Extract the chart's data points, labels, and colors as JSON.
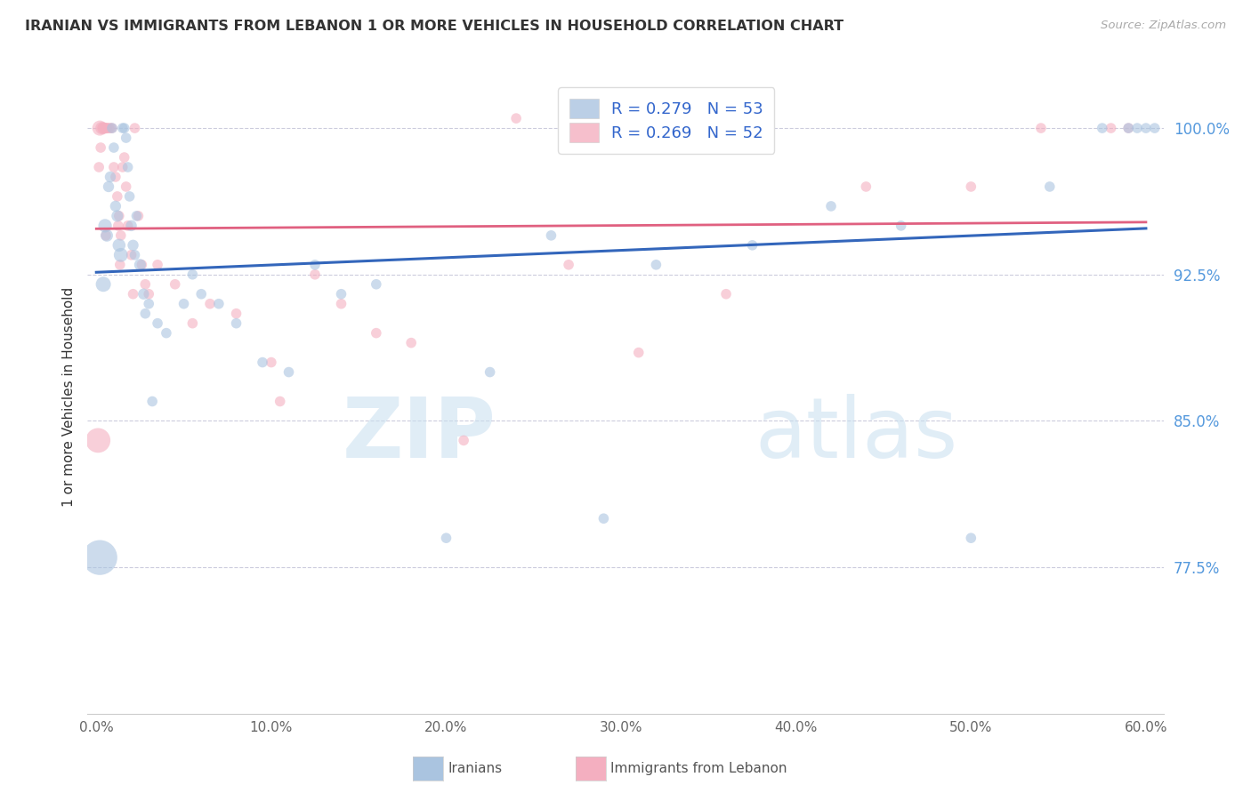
{
  "title": "IRANIAN VS IMMIGRANTS FROM LEBANON 1 OR MORE VEHICLES IN HOUSEHOLD CORRELATION CHART",
  "source": "Source: ZipAtlas.com",
  "ylabel": "1 or more Vehicles in Household",
  "xlabel_ticks": [
    "0.0%",
    "10.0%",
    "20.0%",
    "30.0%",
    "40.0%",
    "50.0%",
    "60.0%"
  ],
  "xlabel_vals": [
    0.0,
    10.0,
    20.0,
    30.0,
    40.0,
    50.0,
    60.0
  ],
  "ylim": [
    70.0,
    102.5
  ],
  "xlim": [
    -0.5,
    61.0
  ],
  "yticks": [
    77.5,
    85.0,
    92.5,
    100.0
  ],
  "ytick_labels": [
    "77.5%",
    "85.0%",
    "92.5%",
    "100.0%"
  ],
  "blue_color": "#aac4e0",
  "pink_color": "#f4afc0",
  "trendline_blue": "#3366bb",
  "trendline_pink": "#e06080",
  "legend_blue_text": "R = 0.279   N = 53",
  "legend_pink_text": "R = 0.269   N = 52",
  "watermark_zip": "ZIP",
  "watermark_atlas": "atlas",
  "iranians_x": [
    0.2,
    0.4,
    0.5,
    0.6,
    0.7,
    0.8,
    0.9,
    1.0,
    1.1,
    1.2,
    1.3,
    1.4,
    1.5,
    1.6,
    1.7,
    1.8,
    1.9,
    2.0,
    2.1,
    2.2,
    2.3,
    2.5,
    2.7,
    3.0,
    3.5,
    4.0,
    5.0,
    5.5,
    6.0,
    7.0,
    8.0,
    9.5,
    11.0,
    12.5,
    14.0,
    16.0,
    20.0,
    22.5,
    26.0,
    29.0,
    32.0,
    37.5,
    42.0,
    46.0,
    50.0,
    54.5,
    57.5,
    59.0,
    59.5,
    60.0,
    60.5,
    3.2,
    2.8
  ],
  "iranians_y": [
    78.0,
    92.0,
    95.0,
    94.5,
    97.0,
    97.5,
    100.0,
    99.0,
    96.0,
    95.5,
    94.0,
    93.5,
    100.0,
    100.0,
    99.5,
    98.0,
    96.5,
    95.0,
    94.0,
    93.5,
    95.5,
    93.0,
    91.5,
    91.0,
    90.0,
    89.5,
    91.0,
    92.5,
    91.5,
    91.0,
    90.0,
    88.0,
    87.5,
    93.0,
    91.5,
    92.0,
    79.0,
    87.5,
    94.5,
    80.0,
    93.0,
    94.0,
    96.0,
    95.0,
    79.0,
    97.0,
    100.0,
    100.0,
    100.0,
    100.0,
    100.0,
    86.0,
    90.5
  ],
  "iranians_size": [
    800,
    150,
    120,
    100,
    80,
    80,
    70,
    70,
    80,
    90,
    110,
    130,
    70,
    70,
    70,
    70,
    70,
    80,
    80,
    70,
    70,
    90,
    80,
    70,
    70,
    70,
    70,
    70,
    70,
    70,
    70,
    70,
    70,
    70,
    70,
    70,
    70,
    70,
    70,
    70,
    70,
    70,
    70,
    70,
    70,
    70,
    70,
    70,
    70,
    70,
    70,
    70,
    70
  ],
  "lebanon_x": [
    0.1,
    0.2,
    0.3,
    0.4,
    0.5,
    0.6,
    0.7,
    0.8,
    0.9,
    1.0,
    1.1,
    1.2,
    1.3,
    1.4,
    1.5,
    1.6,
    1.7,
    1.8,
    2.0,
    2.2,
    2.4,
    2.6,
    2.8,
    3.0,
    3.5,
    4.5,
    5.5,
    6.5,
    8.0,
    10.0,
    12.5,
    14.0,
    16.0,
    18.0,
    21.0,
    24.0,
    27.0,
    31.0,
    36.0,
    44.0,
    50.0,
    54.0,
    58.0,
    59.0,
    10.5,
    1.25,
    1.35,
    2.1,
    0.55,
    0.35,
    0.25,
    0.15
  ],
  "lebanon_y": [
    84.0,
    100.0,
    100.0,
    100.0,
    100.0,
    100.0,
    100.0,
    100.0,
    100.0,
    98.0,
    97.5,
    96.5,
    95.5,
    94.5,
    98.0,
    98.5,
    97.0,
    95.0,
    93.5,
    100.0,
    95.5,
    93.0,
    92.0,
    91.5,
    93.0,
    92.0,
    90.0,
    91.0,
    90.5,
    88.0,
    92.5,
    91.0,
    89.5,
    89.0,
    84.0,
    100.5,
    93.0,
    88.5,
    91.5,
    97.0,
    97.0,
    100.0,
    100.0,
    100.0,
    86.0,
    95.0,
    93.0,
    91.5,
    94.5,
    100.0,
    99.0,
    98.0
  ],
  "lebanon_size": [
    400,
    150,
    100,
    90,
    80,
    75,
    70,
    70,
    70,
    70,
    70,
    70,
    70,
    70,
    70,
    70,
    70,
    70,
    70,
    70,
    70,
    70,
    70,
    70,
    70,
    70,
    70,
    70,
    70,
    70,
    70,
    70,
    70,
    70,
    70,
    70,
    70,
    70,
    70,
    70,
    70,
    70,
    70,
    70,
    70,
    70,
    70,
    70,
    70,
    70,
    70,
    70
  ]
}
